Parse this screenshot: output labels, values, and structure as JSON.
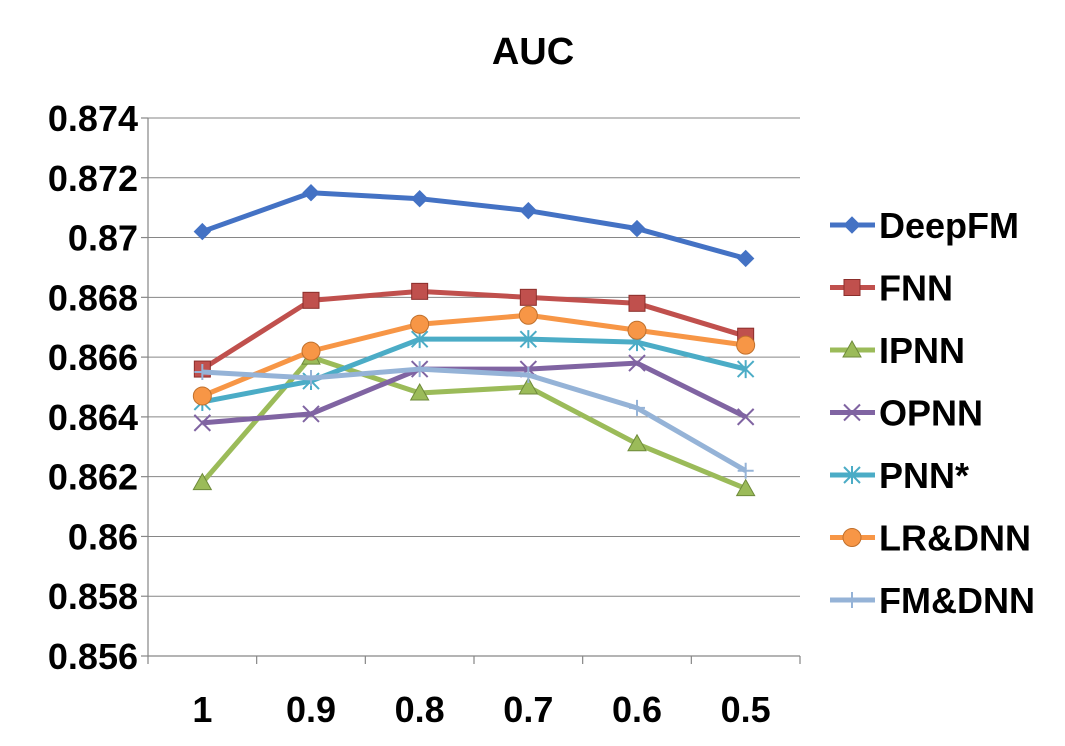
{
  "chart_data": {
    "type": "line",
    "title": "AUC",
    "xlabel": "",
    "ylabel": "",
    "categories": [
      "1",
      "0.9",
      "0.8",
      "0.7",
      "0.6",
      "0.5"
    ],
    "y_ticks": [
      "0.874",
      "0.872",
      "0.87",
      "0.868",
      "0.866",
      "0.864",
      "0.862",
      "0.86",
      "0.858",
      "0.856"
    ],
    "ylim": [
      0.856,
      0.874
    ],
    "grid": "horizontal",
    "legend_position": "right",
    "series": [
      {
        "name": "DeepFM",
        "color": "#4472c4",
        "marker": "diamond",
        "values": [
          0.8702,
          0.8715,
          0.8713,
          0.8709,
          0.8703,
          0.8693
        ]
      },
      {
        "name": "FNN",
        "color": "#c0504d",
        "marker": "square",
        "values": [
          0.8656,
          0.8679,
          0.8682,
          0.868,
          0.8678,
          0.8667
        ]
      },
      {
        "name": "IPNN",
        "color": "#9bbb59",
        "marker": "triangle",
        "values": [
          0.8618,
          0.866,
          0.8648,
          0.865,
          0.8631,
          0.8616
        ]
      },
      {
        "name": "OPNN",
        "color": "#8064a2",
        "marker": "x",
        "values": [
          0.8638,
          0.8641,
          0.8656,
          0.8656,
          0.8658,
          0.864
        ]
      },
      {
        "name": "PNN*",
        "color": "#4bacc6",
        "marker": "asterisk",
        "values": [
          0.8645,
          0.8652,
          0.8666,
          0.8666,
          0.8665,
          0.8656
        ]
      },
      {
        "name": "LR&DNN",
        "color": "#f79646",
        "marker": "circle",
        "values": [
          0.8647,
          0.8662,
          0.8671,
          0.8674,
          0.8669,
          0.8664
        ]
      },
      {
        "name": "FM&DNN",
        "color": "#95b3d7",
        "marker": "plus",
        "values": [
          0.8655,
          0.8653,
          0.8656,
          0.8654,
          0.8643,
          0.8622
        ]
      }
    ]
  }
}
